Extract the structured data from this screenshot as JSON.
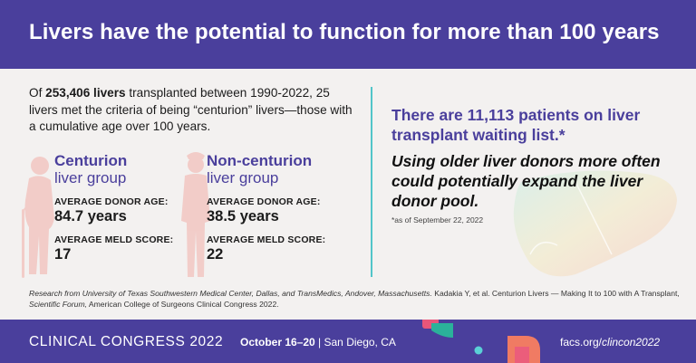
{
  "header": {
    "title": "Livers have the potential to function for more than 100 years"
  },
  "intro": {
    "prefix": "Of ",
    "bold": "253,406 livers",
    "rest": " transplanted between 1990-2022, 25 livers met the criteria of being “centurion” livers—those with a cumulative age over 100 years."
  },
  "groups": [
    {
      "title": "Centurion",
      "subtitle": "liver group",
      "donor_age_label": "AVERAGE DONOR AGE:",
      "donor_age_value": "84.7 years",
      "meld_label": "AVERAGE MELD SCORE:",
      "meld_value": "17"
    },
    {
      "title": "Non-centurion",
      "subtitle": "liver group",
      "donor_age_label": "AVERAGE DONOR AGE:",
      "donor_age_value": "38.5 years",
      "meld_label": "AVERAGE MELD SCORE:",
      "meld_value": "22"
    }
  ],
  "waitlist": "There are 11,113 patients on liver transplant waiting list.*",
  "quote": "Using older liver donors more often could potentially expand the liver donor pool.",
  "footnote": "*as of September 22, 2022",
  "research": {
    "italic": "Research from University of Texas Southwestern Medical Center, Dallas, and TransMedics, Andover, Massachusetts.",
    "mid": " Kadakia Y, et al. Centurion Livers — Making It to 100 with A Transplant, ",
    "italic2": "Scientific Forum,",
    "end": " American College of Surgeons Clinical Congress 2022."
  },
  "footer": {
    "conference": "CLINICAL CONGRESS 2022",
    "dates": "October 16–20",
    "location": " | San Diego, CA",
    "url_prefix": "facs.org/",
    "url_path": "clincon2022"
  },
  "colors": {
    "brand": "#4a3f9c",
    "accent_teal": "#52c5c9",
    "silhouette": "#f2c9c4"
  },
  "icons": [
    "elderly-person-icon",
    "adult-person-icon",
    "liver-icon"
  ]
}
